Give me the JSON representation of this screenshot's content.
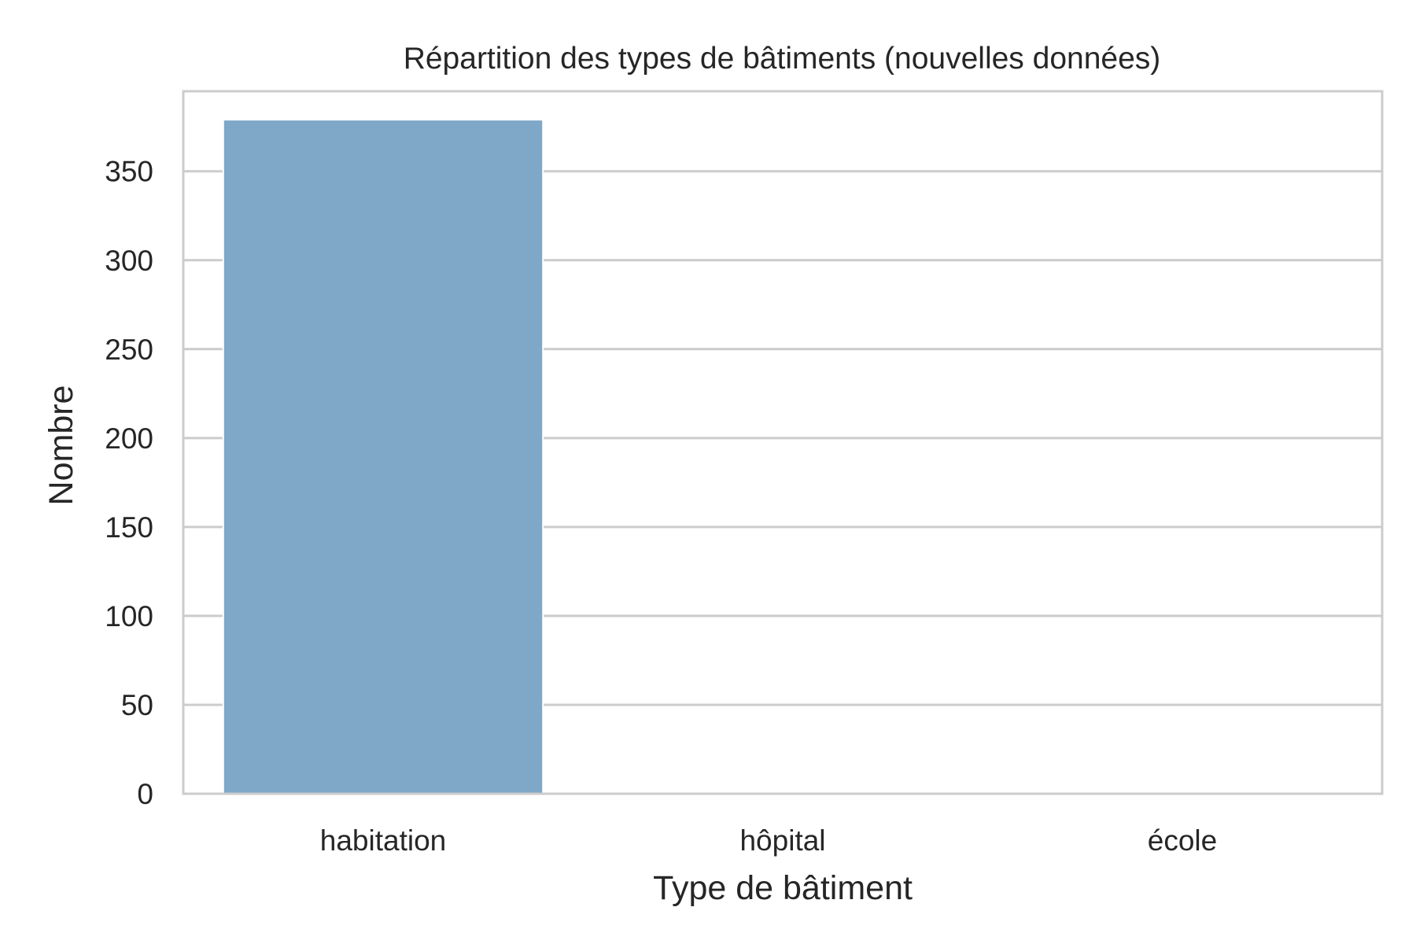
{
  "chart_data": {
    "type": "bar",
    "title": "Répartition des types de bâtiments (nouvelles données)",
    "xlabel": "Type de bâtiment",
    "ylabel": "Nombre",
    "categories": [
      "habitation",
      "hôpital",
      "école"
    ],
    "values": [
      379,
      0,
      0
    ],
    "ylim": [
      0,
      395
    ],
    "yticks": [
      0,
      50,
      100,
      150,
      200,
      250,
      300,
      350
    ],
    "grid": "horizontal",
    "colors": {
      "bar": "#7ea7c8",
      "grid": "#cccccc",
      "frame": "#cccccc",
      "text": "#262626"
    }
  }
}
